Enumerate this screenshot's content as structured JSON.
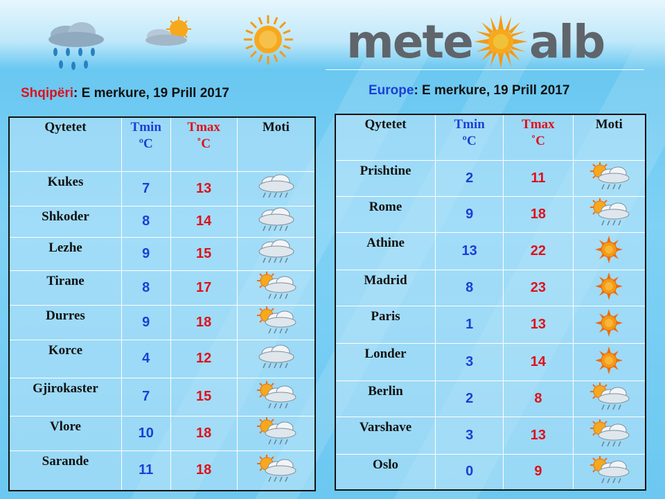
{
  "brand": {
    "logo_left": "mete",
    "logo_right": "alb"
  },
  "headings": {
    "albania": {
      "region": "Shqipëri",
      "date": ": E merkure, 19 Prill 2017"
    },
    "europe": {
      "region": "Europe",
      "date": ": E merkure, 19 Prill 2017"
    }
  },
  "columns": {
    "city": "Qytetet",
    "tmin": "Tmin",
    "tmin_unit": "ºC",
    "tmax": "Tmax",
    "tmax_unit": "˚C",
    "moti": "Moti"
  },
  "albania_rows": [
    {
      "city": "Kukes",
      "tmin": "7",
      "tmax": "13",
      "icon": "rain-cloud-icon"
    },
    {
      "city": "Shkoder",
      "tmin": "8",
      "tmax": "14",
      "icon": "rain-cloud-icon"
    },
    {
      "city": "Lezhe",
      "tmin": "9",
      "tmax": "15",
      "icon": "rain-cloud-icon"
    },
    {
      "city": "Tirane",
      "tmin": "8",
      "tmax": "17",
      "icon": "sun-rain-cloud-icon"
    },
    {
      "city": "Durres",
      "tmin": "9",
      "tmax": "18",
      "icon": "sun-rain-cloud-icon"
    },
    {
      "city": "Korce",
      "tmin": "4",
      "tmax": "12",
      "icon": "rain-cloud-icon"
    },
    {
      "city": "Gjirokaster",
      "tmin": "7",
      "tmax": "15",
      "icon": "sun-rain-cloud-icon"
    },
    {
      "city": "Vlore",
      "tmin": "10",
      "tmax": "18",
      "icon": "sun-rain-cloud-icon"
    },
    {
      "city": "Sarande",
      "tmin": "11",
      "tmax": "18",
      "icon": "sun-rain-cloud-icon"
    }
  ],
  "europe_rows": [
    {
      "city": "Prishtine",
      "tmin": "2",
      "tmax": "11",
      "icon": "sun-rain-cloud-icon"
    },
    {
      "city": "Rome",
      "tmin": "9",
      "tmax": "18",
      "icon": "sun-rain-cloud-icon"
    },
    {
      "city": "Athine",
      "tmin": "13",
      "tmax": "22",
      "icon": "sun-icon"
    },
    {
      "city": "Madrid",
      "tmin": "8",
      "tmax": "23",
      "icon": "sun-icon"
    },
    {
      "city": "Paris",
      "tmin": "1",
      "tmax": "13",
      "icon": "sun-icon"
    },
    {
      "city": "Londer",
      "tmin": "3",
      "tmax": "14",
      "icon": "sun-icon"
    },
    {
      "city": "Berlin",
      "tmin": "2",
      "tmax": "8",
      "icon": "sun-rain-cloud-icon"
    },
    {
      "city": "Varshave",
      "tmin": "3",
      "tmax": "13",
      "icon": "sun-rain-cloud-icon"
    },
    {
      "city": "Oslo",
      "tmin": "0",
      "tmax": "9",
      "icon": "sun-rain-cloud-icon"
    }
  ],
  "colors": {
    "tmin": "#1b3fd6",
    "tmax": "#e0101a",
    "background": "#6cc8f1",
    "logo_gray": "#5f656b",
    "sun": "#f39a14"
  }
}
